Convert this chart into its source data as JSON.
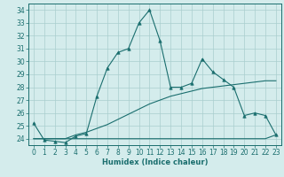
{
  "xlabel": "Humidex (Indice chaleur)",
  "background_color": "#d4ecec",
  "grid_color": "#aacece",
  "line_color": "#1a6e6e",
  "xlim": [
    -0.5,
    23.5
  ],
  "ylim": [
    23.5,
    34.5
  ],
  "xticks": [
    0,
    1,
    2,
    3,
    4,
    5,
    6,
    7,
    8,
    9,
    10,
    11,
    12,
    13,
    14,
    15,
    16,
    17,
    18,
    19,
    20,
    21,
    22,
    23
  ],
  "yticks": [
    24,
    25,
    26,
    27,
    28,
    29,
    30,
    31,
    32,
    33,
    34
  ],
  "line1_x": [
    0,
    1,
    2,
    3,
    4,
    5,
    6,
    7,
    8,
    9,
    10,
    11,
    12,
    13,
    14,
    15,
    16,
    17,
    18,
    19,
    20,
    21,
    22,
    23
  ],
  "line1_y": [
    25.2,
    23.9,
    23.8,
    23.7,
    24.2,
    24.4,
    27.3,
    29.5,
    30.7,
    31.0,
    33.0,
    34.0,
    31.6,
    28.0,
    28.0,
    28.3,
    30.2,
    29.2,
    28.6,
    28.0,
    25.8,
    26.0,
    25.8,
    24.3
  ],
  "line2_x": [
    0,
    1,
    2,
    3,
    4,
    5,
    6,
    7,
    8,
    9,
    10,
    11,
    12,
    13,
    14,
    15,
    16,
    17,
    18,
    19,
    20,
    21,
    22,
    23
  ],
  "line2_y": [
    24.0,
    24.0,
    24.0,
    24.0,
    24.3,
    24.5,
    24.8,
    25.1,
    25.5,
    25.9,
    26.3,
    26.7,
    27.0,
    27.3,
    27.5,
    27.7,
    27.9,
    28.0,
    28.1,
    28.2,
    28.3,
    28.4,
    28.5,
    28.5
  ],
  "line3_x": [
    0,
    1,
    2,
    3,
    4,
    5,
    6,
    7,
    8,
    9,
    10,
    11,
    12,
    13,
    14,
    15,
    16,
    17,
    18,
    19,
    20,
    21,
    22,
    23
  ],
  "line3_y": [
    24.0,
    24.0,
    24.0,
    24.0,
    24.0,
    24.0,
    24.0,
    24.0,
    24.0,
    24.0,
    24.0,
    24.0,
    24.0,
    24.0,
    24.0,
    24.0,
    24.0,
    24.0,
    24.0,
    24.0,
    24.0,
    24.0,
    24.0,
    24.3
  ]
}
